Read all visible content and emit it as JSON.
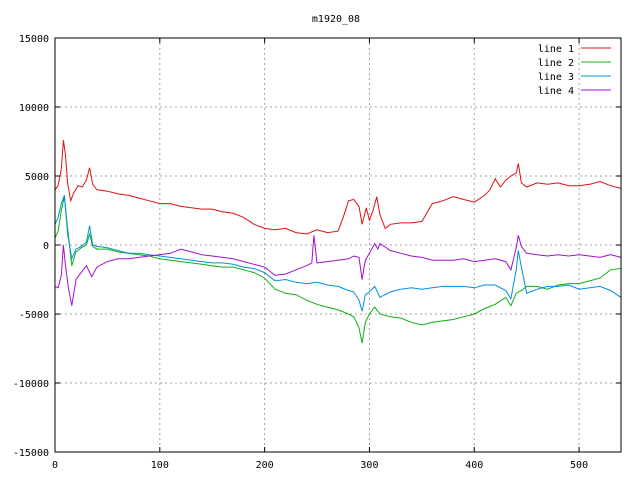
{
  "chart_data": {
    "type": "line",
    "title": "m1920_08",
    "xlabel": "",
    "ylabel": "",
    "xlim": [
      0,
      540
    ],
    "ylim": [
      -15000,
      15000
    ],
    "grid": true,
    "legend_placement": "top-right",
    "x_ticks": [
      0,
      100,
      200,
      300,
      400,
      500
    ],
    "y_ticks": [
      -15000,
      -10000,
      -5000,
      0,
      5000,
      10000,
      15000
    ],
    "x_tick_labels": [
      "0",
      "100",
      "200",
      "300",
      "400",
      "500"
    ],
    "y_tick_labels": [
      "-15000",
      "-10000",
      "-5000",
      "0",
      "5000",
      "10000",
      "15000"
    ],
    "series": [
      {
        "name": "line 1",
        "color": "#e01010",
        "points": [
          [
            0,
            4000
          ],
          [
            3,
            4300
          ],
          [
            6,
            5500
          ],
          [
            8,
            7600
          ],
          [
            10,
            6500
          ],
          [
            12,
            4500
          ],
          [
            15,
            3200
          ],
          [
            18,
            3800
          ],
          [
            22,
            4300
          ],
          [
            26,
            4200
          ],
          [
            30,
            4700
          ],
          [
            33,
            5600
          ],
          [
            36,
            4400
          ],
          [
            40,
            4000
          ],
          [
            50,
            3900
          ],
          [
            60,
            3700
          ],
          [
            70,
            3600
          ],
          [
            80,
            3400
          ],
          [
            90,
            3200
          ],
          [
            100,
            3000
          ],
          [
            110,
            3000
          ],
          [
            120,
            2800
          ],
          [
            130,
            2700
          ],
          [
            140,
            2600
          ],
          [
            150,
            2600
          ],
          [
            160,
            2400
          ],
          [
            170,
            2300
          ],
          [
            180,
            2000
          ],
          [
            190,
            1500
          ],
          [
            200,
            1200
          ],
          [
            210,
            1100
          ],
          [
            220,
            1200
          ],
          [
            230,
            900
          ],
          [
            240,
            800
          ],
          [
            250,
            1100
          ],
          [
            260,
            900
          ],
          [
            270,
            1000
          ],
          [
            275,
            2000
          ],
          [
            280,
            3200
          ],
          [
            285,
            3300
          ],
          [
            290,
            2800
          ],
          [
            293,
            1500
          ],
          [
            297,
            2700
          ],
          [
            300,
            1800
          ],
          [
            303,
            2400
          ],
          [
            307,
            3500
          ],
          [
            310,
            2200
          ],
          [
            315,
            1200
          ],
          [
            320,
            1500
          ],
          [
            330,
            1600
          ],
          [
            340,
            1600
          ],
          [
            350,
            1700
          ],
          [
            360,
            3000
          ],
          [
            370,
            3200
          ],
          [
            380,
            3500
          ],
          [
            390,
            3300
          ],
          [
            400,
            3100
          ],
          [
            410,
            3600
          ],
          [
            415,
            4000
          ],
          [
            420,
            4800
          ],
          [
            425,
            4200
          ],
          [
            430,
            4700
          ],
          [
            435,
            5000
          ],
          [
            440,
            5200
          ],
          [
            442,
            5900
          ],
          [
            445,
            4500
          ],
          [
            450,
            4200
          ],
          [
            460,
            4500
          ],
          [
            470,
            4400
          ],
          [
            480,
            4500
          ],
          [
            490,
            4300
          ],
          [
            500,
            4300
          ],
          [
            510,
            4400
          ],
          [
            520,
            4600
          ],
          [
            530,
            4300
          ],
          [
            540,
            4100
          ]
        ]
      },
      {
        "name": "line 2",
        "color": "#10b010",
        "points": [
          [
            0,
            500
          ],
          [
            3,
            1000
          ],
          [
            6,
            2500
          ],
          [
            9,
            3500
          ],
          [
            12,
            1200
          ],
          [
            16,
            -1500
          ],
          [
            20,
            -500
          ],
          [
            25,
            -200
          ],
          [
            30,
            0
          ],
          [
            33,
            800
          ],
          [
            36,
            -100
          ],
          [
            40,
            -300
          ],
          [
            50,
            -300
          ],
          [
            60,
            -500
          ],
          [
            70,
            -600
          ],
          [
            80,
            -700
          ],
          [
            90,
            -800
          ],
          [
            100,
            -1000
          ],
          [
            110,
            -1100
          ],
          [
            120,
            -1200
          ],
          [
            130,
            -1300
          ],
          [
            140,
            -1400
          ],
          [
            150,
            -1500
          ],
          [
            160,
            -1600
          ],
          [
            170,
            -1600
          ],
          [
            180,
            -1800
          ],
          [
            190,
            -2000
          ],
          [
            200,
            -2400
          ],
          [
            210,
            -3200
          ],
          [
            220,
            -3500
          ],
          [
            230,
            -3600
          ],
          [
            240,
            -4000
          ],
          [
            250,
            -4300
          ],
          [
            260,
            -4500
          ],
          [
            270,
            -4700
          ],
          [
            280,
            -5000
          ],
          [
            285,
            -5200
          ],
          [
            290,
            -6000
          ],
          [
            293,
            -7100
          ],
          [
            296,
            -5600
          ],
          [
            300,
            -5000
          ],
          [
            305,
            -4500
          ],
          [
            310,
            -5000
          ],
          [
            320,
            -5200
          ],
          [
            330,
            -5300
          ],
          [
            340,
            -5600
          ],
          [
            350,
            -5800
          ],
          [
            360,
            -5600
          ],
          [
            370,
            -5500
          ],
          [
            380,
            -5400
          ],
          [
            390,
            -5200
          ],
          [
            400,
            -5000
          ],
          [
            410,
            -4600
          ],
          [
            420,
            -4300
          ],
          [
            430,
            -3800
          ],
          [
            435,
            -4400
          ],
          [
            440,
            -3500
          ],
          [
            445,
            -3300
          ],
          [
            450,
            -3000
          ],
          [
            460,
            -3000
          ],
          [
            470,
            -3200
          ],
          [
            480,
            -2900
          ],
          [
            490,
            -2800
          ],
          [
            500,
            -2800
          ],
          [
            510,
            -2600
          ],
          [
            520,
            -2400
          ],
          [
            530,
            -1800
          ],
          [
            540,
            -1700
          ]
        ]
      },
      {
        "name": "line 3",
        "color": "#0090e0",
        "points": [
          [
            0,
            1500
          ],
          [
            3,
            2000
          ],
          [
            6,
            3000
          ],
          [
            9,
            3600
          ],
          [
            12,
            800
          ],
          [
            16,
            -1000
          ],
          [
            20,
            -300
          ],
          [
            25,
            -100
          ],
          [
            30,
            200
          ],
          [
            33,
            1400
          ],
          [
            36,
            0
          ],
          [
            40,
            -100
          ],
          [
            50,
            -200
          ],
          [
            60,
            -400
          ],
          [
            70,
            -600
          ],
          [
            80,
            -600
          ],
          [
            90,
            -700
          ],
          [
            100,
            -800
          ],
          [
            110,
            -900
          ],
          [
            120,
            -1000
          ],
          [
            130,
            -1100
          ],
          [
            140,
            -1200
          ],
          [
            150,
            -1300
          ],
          [
            160,
            -1300
          ],
          [
            170,
            -1400
          ],
          [
            180,
            -1600
          ],
          [
            190,
            -1700
          ],
          [
            200,
            -2000
          ],
          [
            210,
            -2600
          ],
          [
            220,
            -2500
          ],
          [
            230,
            -2700
          ],
          [
            240,
            -2800
          ],
          [
            250,
            -2700
          ],
          [
            260,
            -2900
          ],
          [
            270,
            -3000
          ],
          [
            280,
            -3300
          ],
          [
            285,
            -3400
          ],
          [
            290,
            -4000
          ],
          [
            293,
            -4800
          ],
          [
            296,
            -3600
          ],
          [
            300,
            -3400
          ],
          [
            305,
            -3000
          ],
          [
            307,
            -3300
          ],
          [
            310,
            -3800
          ],
          [
            320,
            -3400
          ],
          [
            330,
            -3200
          ],
          [
            340,
            -3100
          ],
          [
            350,
            -3200
          ],
          [
            360,
            -3100
          ],
          [
            370,
            -3000
          ],
          [
            380,
            -3000
          ],
          [
            390,
            -3000
          ],
          [
            400,
            -3100
          ],
          [
            410,
            -2900
          ],
          [
            420,
            -2900
          ],
          [
            430,
            -3300
          ],
          [
            435,
            -3900
          ],
          [
            440,
            -1800
          ],
          [
            442,
            -400
          ],
          [
            445,
            -1600
          ],
          [
            450,
            -3500
          ],
          [
            460,
            -3200
          ],
          [
            470,
            -3000
          ],
          [
            480,
            -3000
          ],
          [
            490,
            -2900
          ],
          [
            500,
            -3200
          ],
          [
            510,
            -3100
          ],
          [
            520,
            -3000
          ],
          [
            530,
            -3300
          ],
          [
            540,
            -3800
          ]
        ]
      },
      {
        "name": "line 4",
        "color": "#a010d0",
        "points": [
          [
            0,
            -3000
          ],
          [
            3,
            -3100
          ],
          [
            6,
            -2200
          ],
          [
            8,
            0
          ],
          [
            10,
            -1500
          ],
          [
            13,
            -3200
          ],
          [
            16,
            -4400
          ],
          [
            20,
            -2500
          ],
          [
            25,
            -2000
          ],
          [
            30,
            -1500
          ],
          [
            35,
            -2300
          ],
          [
            40,
            -1600
          ],
          [
            50,
            -1200
          ],
          [
            60,
            -1000
          ],
          [
            70,
            -1000
          ],
          [
            80,
            -900
          ],
          [
            90,
            -800
          ],
          [
            100,
            -700
          ],
          [
            110,
            -600
          ],
          [
            120,
            -300
          ],
          [
            130,
            -500
          ],
          [
            140,
            -700
          ],
          [
            150,
            -800
          ],
          [
            160,
            -900
          ],
          [
            170,
            -1000
          ],
          [
            180,
            -1200
          ],
          [
            190,
            -1400
          ],
          [
            200,
            -1600
          ],
          [
            210,
            -2200
          ],
          [
            220,
            -2100
          ],
          [
            230,
            -1800
          ],
          [
            240,
            -1500
          ],
          [
            245,
            -1300
          ],
          [
            247,
            700
          ],
          [
            250,
            -1300
          ],
          [
            260,
            -1200
          ],
          [
            270,
            -1100
          ],
          [
            280,
            -1000
          ],
          [
            285,
            -800
          ],
          [
            290,
            -900
          ],
          [
            293,
            -2500
          ],
          [
            296,
            -1100
          ],
          [
            300,
            -600
          ],
          [
            305,
            100
          ],
          [
            308,
            -300
          ],
          [
            310,
            100
          ],
          [
            320,
            -400
          ],
          [
            330,
            -600
          ],
          [
            340,
            -800
          ],
          [
            350,
            -900
          ],
          [
            360,
            -1100
          ],
          [
            370,
            -1100
          ],
          [
            380,
            -1100
          ],
          [
            390,
            -1000
          ],
          [
            400,
            -1200
          ],
          [
            410,
            -1100
          ],
          [
            420,
            -1000
          ],
          [
            430,
            -1200
          ],
          [
            435,
            -1800
          ],
          [
            440,
            -200
          ],
          [
            442,
            700
          ],
          [
            445,
            -100
          ],
          [
            450,
            -600
          ],
          [
            460,
            -700
          ],
          [
            470,
            -800
          ],
          [
            480,
            -700
          ],
          [
            490,
            -800
          ],
          [
            500,
            -700
          ],
          [
            510,
            -800
          ],
          [
            520,
            -900
          ],
          [
            530,
            -700
          ],
          [
            540,
            -900
          ]
        ]
      }
    ]
  }
}
